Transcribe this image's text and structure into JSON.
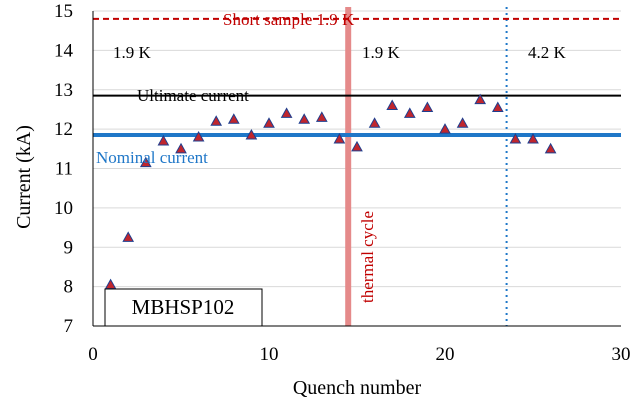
{
  "chart_data": {
    "type": "scatter",
    "xlabel": "Quench number",
    "ylabel": "Current (kA)",
    "xlim": [
      0,
      30
    ],
    "ylim": [
      7,
      15
    ],
    "xticks": [
      "0",
      "10",
      "20",
      "30"
    ],
    "yticks": [
      "7",
      "8",
      "9",
      "10",
      "11",
      "12",
      "13",
      "14",
      "15"
    ],
    "grid": "horizontal",
    "marker_color": "#c0262d",
    "marker_edge_color": "#1f3f8f",
    "series": [
      {
        "x": [
          1,
          2,
          3,
          4,
          5,
          6,
          7,
          8,
          9,
          10,
          11,
          12,
          13,
          14,
          15,
          16,
          17,
          18,
          19,
          20,
          21,
          22,
          23,
          24,
          25,
          26
        ],
        "y": [
          8.05,
          9.25,
          11.15,
          11.7,
          11.5,
          11.8,
          12.2,
          12.25,
          11.85,
          12.15,
          12.4,
          12.25,
          12.3,
          11.75,
          11.55,
          12.15,
          12.6,
          12.4,
          12.55,
          12.0,
          12.15,
          12.75,
          12.55,
          11.75,
          11.75,
          11.5
        ]
      }
    ],
    "reference_lines": [
      {
        "label": "Short sample 1.9 K",
        "y": 14.8,
        "color": "#c00000",
        "style": "dashed"
      },
      {
        "label": "Ultimate current",
        "y": 12.85,
        "color": "#000000",
        "style": "solid"
      },
      {
        "label": "Nominal current",
        "y": 11.85,
        "color": "#1f77c8",
        "style": "solid"
      }
    ],
    "vertical_lines": [
      {
        "label": "thermal cycle",
        "x": 14.5,
        "color": "#e58a8a",
        "style": "solid"
      },
      {
        "x": 23.5,
        "color": "#1f77c8",
        "style": "dotted"
      }
    ],
    "annotations": [
      "1.9 K",
      "1.9 K",
      "4.2 K"
    ],
    "magnet_label": "MBHSP102"
  }
}
